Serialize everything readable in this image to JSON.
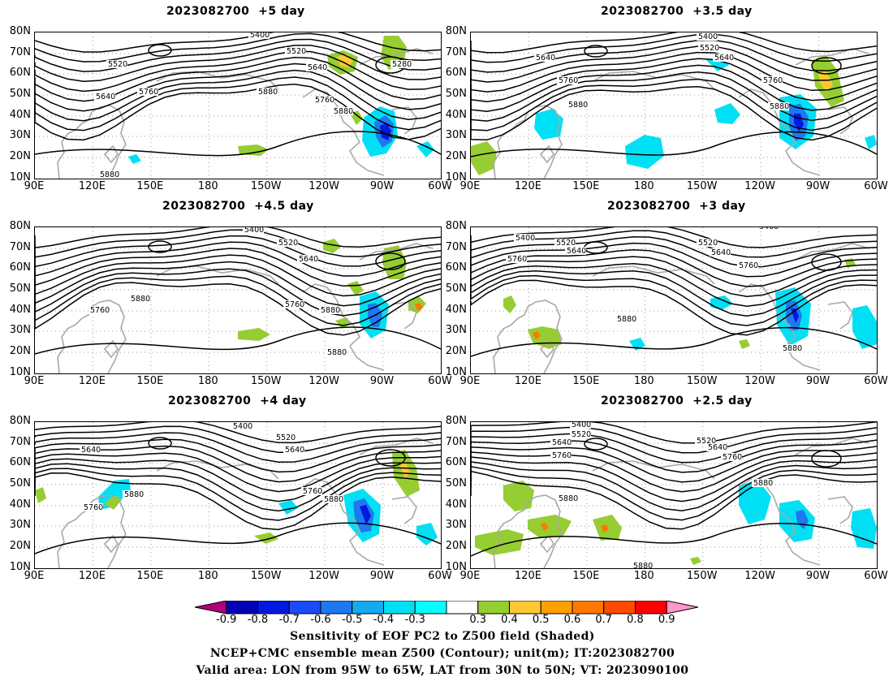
{
  "panels": [
    {
      "id": "p1",
      "title": "2023082700  +5 day",
      "contour_labels": [
        "5400",
        "5520",
        "5640",
        "5280",
        "5520",
        "5640",
        "5760",
        "5880",
        "5760",
        "5880",
        "5880"
      ]
    },
    {
      "id": "p2",
      "title": "2023082700  +3.5 day",
      "contour_labels": [
        "5400",
        "5520",
        "5640",
        "5640",
        "5760",
        "5880",
        "5760",
        "5880"
      ]
    },
    {
      "id": "p3",
      "title": "2023082700  +4.5 day",
      "contour_labels": [
        "5400",
        "5520",
        "5640",
        "5760",
        "5880",
        "5760",
        "5880",
        "5880"
      ]
    },
    {
      "id": "p4",
      "title": "2023082700  +3 day",
      "contour_labels": [
        "5400",
        "5400",
        "5520",
        "5640",
        "5760",
        "5520",
        "5640",
        "5760",
        "5880",
        "5880"
      ]
    },
    {
      "id": "p5",
      "title": "2023082700  +4 day",
      "contour_labels": [
        "5400",
        "5520",
        "5640",
        "5640",
        "5880",
        "5760",
        "5760",
        "5880"
      ]
    },
    {
      "id": "p6",
      "title": "2023082700  +2.5 day",
      "contour_labels": [
        "5400",
        "5520",
        "5640",
        "5760",
        "5520",
        "5640",
        "5760",
        "5880",
        "5880",
        "5880"
      ]
    }
  ],
  "lat_labels": [
    "80N",
    "70N",
    "60N",
    "50N",
    "40N",
    "30N",
    "20N",
    "10N"
  ],
  "lon_labels": [
    "90E",
    "120E",
    "150E",
    "180",
    "150W",
    "120W",
    "90W",
    "60W"
  ],
  "colorbar": {
    "labels": [
      "-0.9",
      "-0.8",
      "-0.7",
      "-0.6",
      "-0.5",
      "-0.4",
      "-0.3",
      "0.3",
      "0.4",
      "0.5",
      "0.6",
      "0.7",
      "0.8",
      "0.9"
    ],
    "colors": [
      "#b0007a",
      "#0000b4",
      "#0018e0",
      "#1a4bf5",
      "#1e78f0",
      "#14aaf0",
      "#00e0f4",
      "#00ffff",
      "#ffffff",
      "#96cd32",
      "#ffc832",
      "#ffa000",
      "#ff7800",
      "#ff4b00",
      "#ff0000",
      "#ff96c8"
    ]
  },
  "caption": {
    "line1": "Sensitivity of EOF PC2 to Z500 field (Shaded)",
    "line2": "NCEP+CMC ensemble mean Z500 (Contour); unit(m); IT:2023082700",
    "line3": "Valid area: LON from 95W to 65W, LAT from 30N to 50N; VT: 2023090100"
  }
}
